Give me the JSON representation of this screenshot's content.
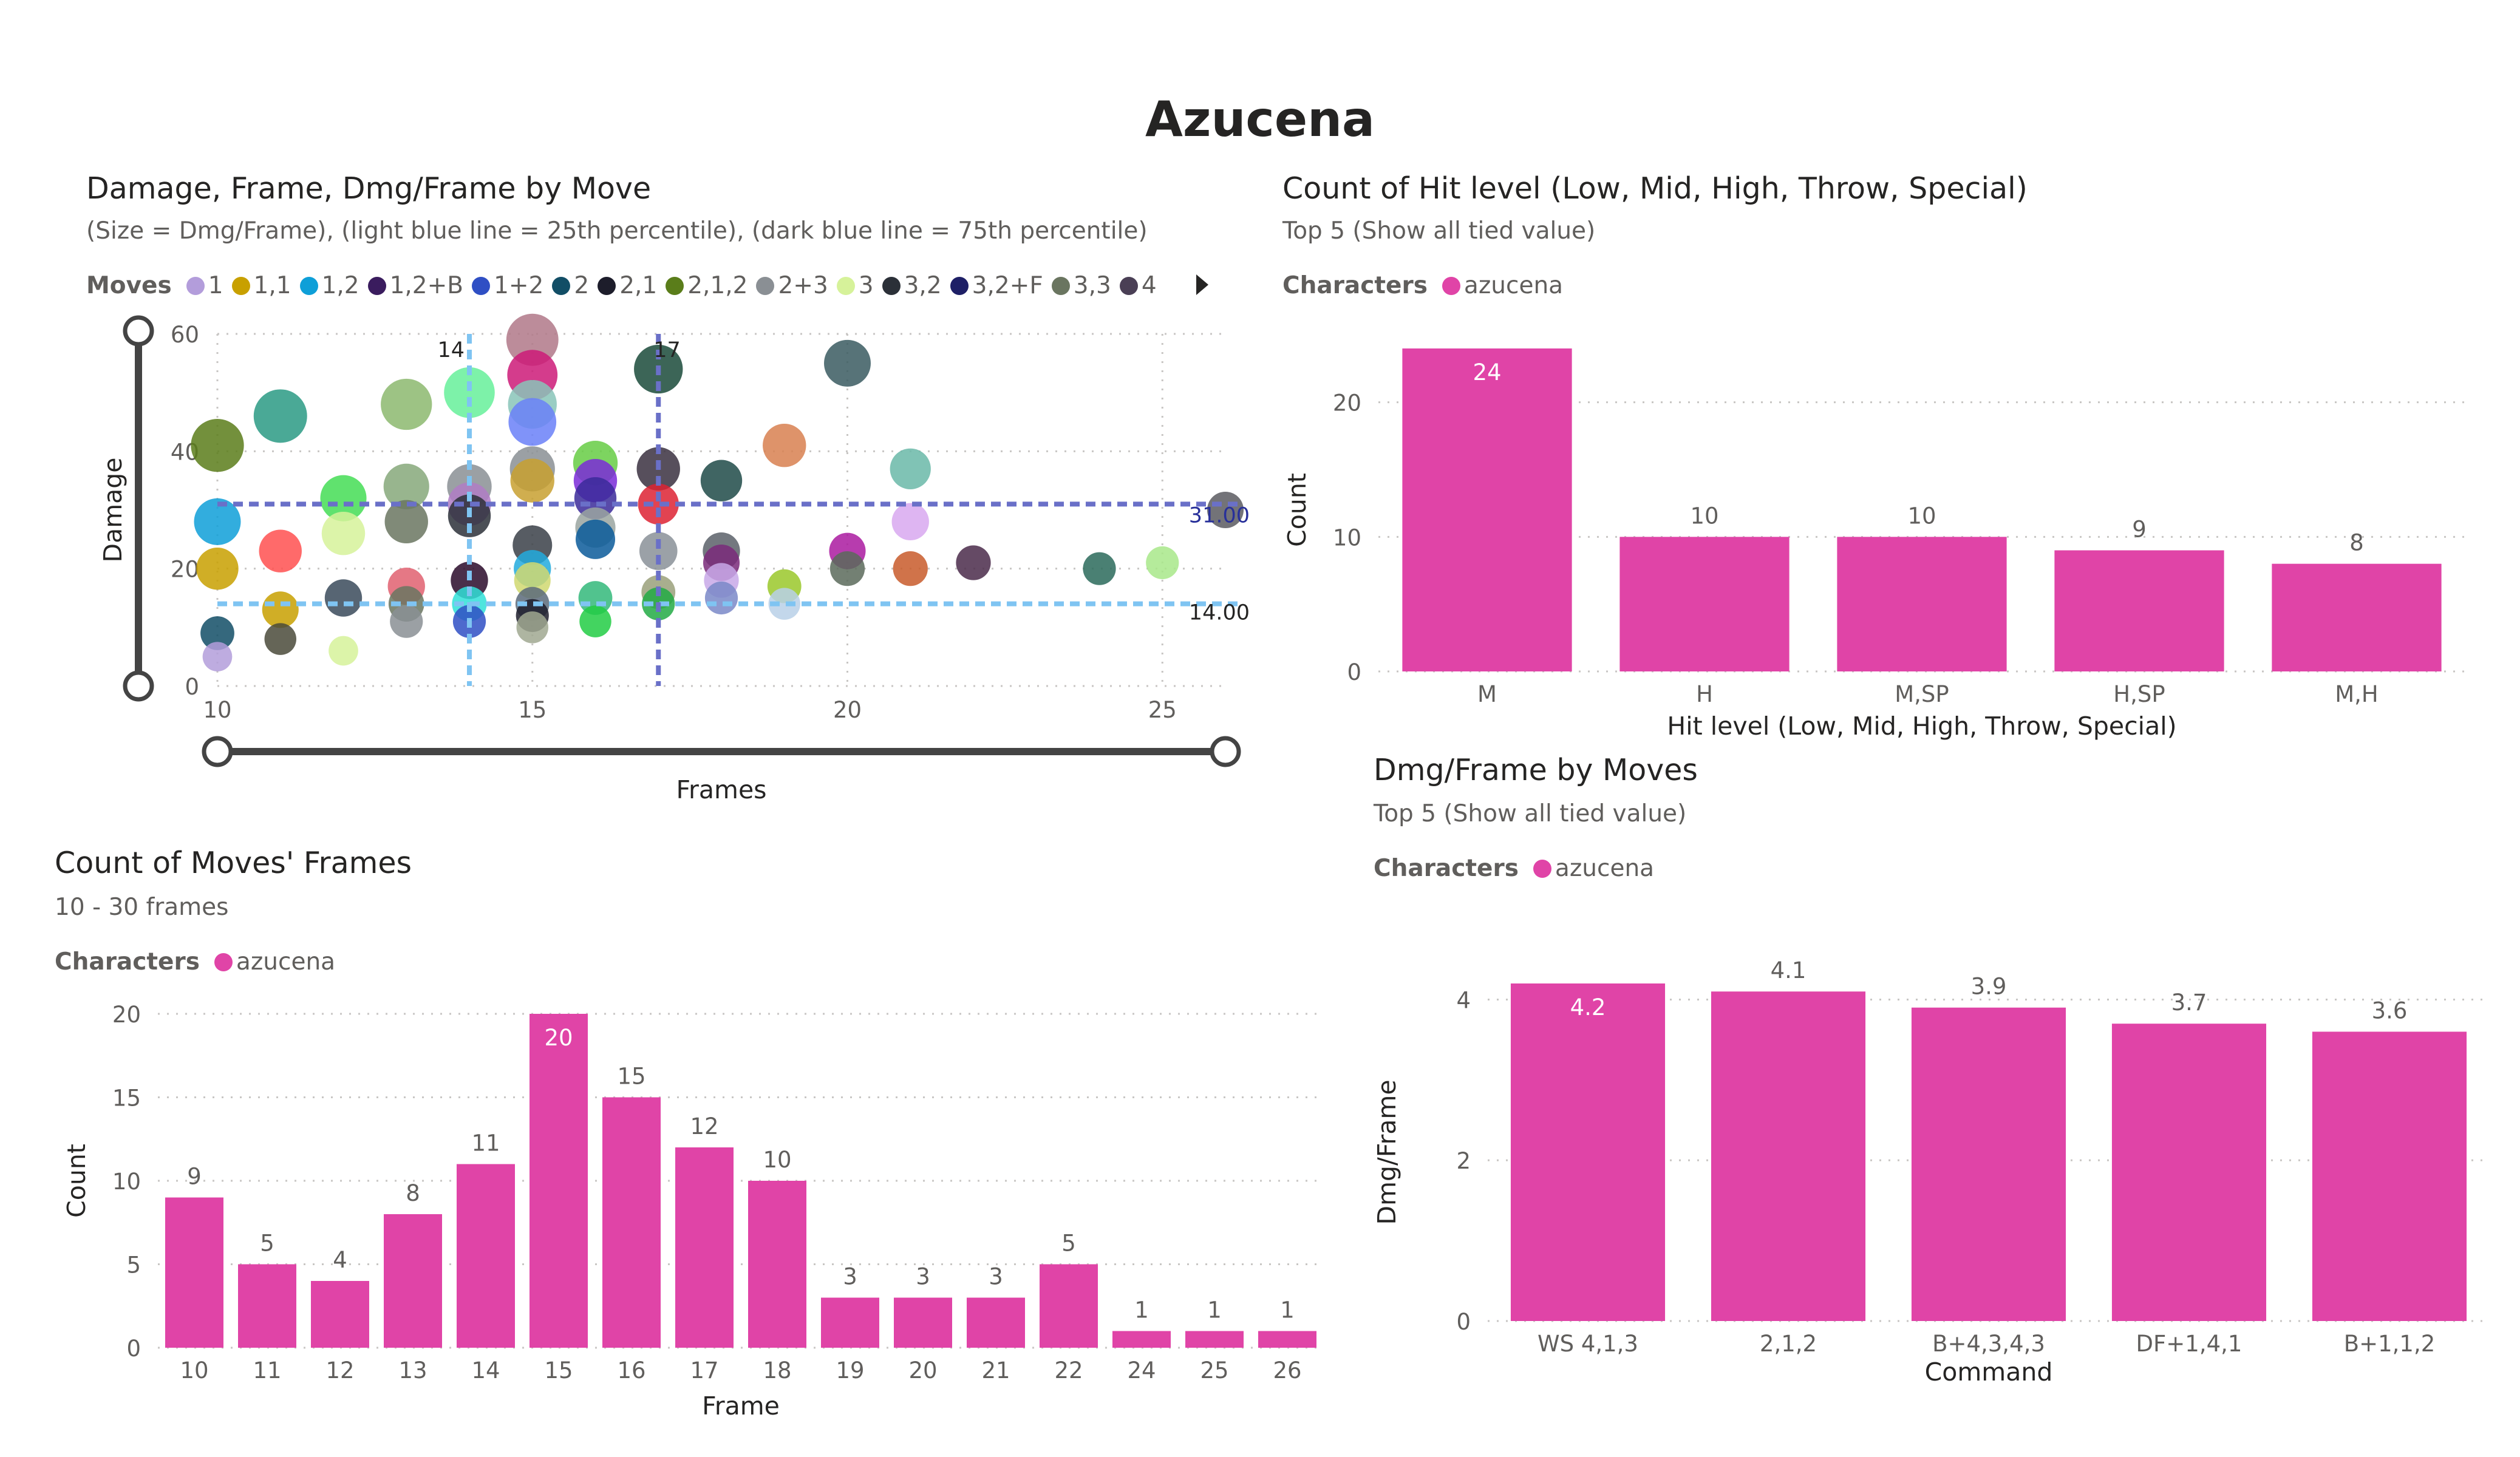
{
  "page": {
    "title": "Azucena"
  },
  "scatter_card": {
    "title": "Damage, Frame, Dmg/Frame by Move",
    "subtitle": "(Size = Dmg/Frame), (light blue line = 25th percentile), (dark blue line = 75th percentile)",
    "legend_label": "Moves",
    "more_icon": "caret-right-icon"
  },
  "hit_card": {
    "title": "Count of Hit level (Low, Mid, High, Throw, Special)",
    "subtitle": "Top 5 (Show all tied value)",
    "legend_label": "Characters",
    "legend_value": "azucena"
  },
  "frames_card": {
    "title": "Count of Moves' Frames",
    "subtitle": "10 - 30 frames",
    "legend_label": "Characters",
    "legend_value": "azucena"
  },
  "dmg_card": {
    "title": "Dmg/Frame by Moves",
    "subtitle": "Top 5 (Show all tied value)",
    "legend_label": "Characters",
    "legend_value": "azucena"
  },
  "colors": {
    "bar": "#e044a7",
    "light_line": "#7fc4f2",
    "dark_line": "#6a70c8",
    "grid": "#c8c6c4",
    "axis_text": "#605e5c"
  },
  "chart_data": [
    {
      "type": "scatter",
      "title": "Damage, Frame, Dmg/Frame by Move",
      "xlabel": "Frames",
      "ylabel": "Damage",
      "xlim": [
        10,
        26
      ],
      "ylim": [
        0,
        60
      ],
      "xticks": [
        10,
        15,
        20,
        25
      ],
      "yticks": [
        0,
        20,
        40,
        60
      ],
      "grid": true,
      "legend_position": "top",
      "legend": [
        {
          "name": "1",
          "color": "#b39ddb"
        },
        {
          "name": "1,1",
          "color": "#c8a000"
        },
        {
          "name": "1,2",
          "color": "#0e9fd8"
        },
        {
          "name": "1,2+B",
          "color": "#3a1c5e"
        },
        {
          "name": "1+2",
          "color": "#2f4fc4"
        },
        {
          "name": "2",
          "color": "#124e66"
        },
        {
          "name": "2,1",
          "color": "#1d1d2b"
        },
        {
          "name": "2,1,2",
          "color": "#5a7d1a"
        },
        {
          "name": "2+3",
          "color": "#8a8f94"
        },
        {
          "name": "3",
          "color": "#d6f29a"
        },
        {
          "name": "3,2",
          "color": "#2b3038"
        },
        {
          "name": "3,2+F",
          "color": "#1e1f66"
        },
        {
          "name": "3,3",
          "color": "#6a7560"
        },
        {
          "name": "4",
          "color": "#4a3f55"
        }
      ],
      "reference_lines": [
        {
          "axis": "y",
          "value": 31.0,
          "label": "31.00",
          "kind": "dark"
        },
        {
          "axis": "y",
          "value": 14.0,
          "label": "14.00",
          "kind": "light"
        },
        {
          "axis": "x",
          "value": 14,
          "label": "14",
          "kind": "light"
        },
        {
          "axis": "x",
          "value": 17,
          "label": "17",
          "kind": "dark"
        }
      ],
      "points": [
        {
          "x": 10,
          "y": 5,
          "size": 0.5,
          "color": "#b39ddb"
        },
        {
          "x": 10,
          "y": 9,
          "size": 0.9,
          "color": "#124e66"
        },
        {
          "x": 10,
          "y": 20,
          "size": 2.0,
          "color": "#c8a000"
        },
        {
          "x": 10,
          "y": 28,
          "size": 2.8,
          "color": "#0e9fd8"
        },
        {
          "x": 10,
          "y": 41,
          "size": 4.1,
          "color": "#5a7d1a"
        },
        {
          "x": 11,
          "y": 8,
          "size": 0.7,
          "color": "#4a4a3a"
        },
        {
          "x": 11,
          "y": 13,
          "size": 1.2,
          "color": "#c8a000"
        },
        {
          "x": 11,
          "y": 23,
          "size": 2.1,
          "color": "#ff5050"
        },
        {
          "x": 11,
          "y": 46,
          "size": 4.2,
          "color": "#2a9a84"
        },
        {
          "x": 12,
          "y": 6,
          "size": 0.5,
          "color": "#d6f29a"
        },
        {
          "x": 12,
          "y": 15,
          "size": 1.3,
          "color": "#3a4a5a"
        },
        {
          "x": 12,
          "y": 26,
          "size": 2.2,
          "color": "#d6f29a"
        },
        {
          "x": 12,
          "y": 32,
          "size": 2.7,
          "color": "#44dd55"
        },
        {
          "x": 13,
          "y": 11,
          "size": 0.8,
          "color": "#8a8f94"
        },
        {
          "x": 13,
          "y": 14,
          "size": 1.1,
          "color": "#6a7560"
        },
        {
          "x": 13,
          "y": 17,
          "size": 1.3,
          "color": "#e06070"
        },
        {
          "x": 13,
          "y": 28,
          "size": 2.2,
          "color": "#6a7560"
        },
        {
          "x": 13,
          "y": 34,
          "size": 2.6,
          "color": "#86a87a"
        },
        {
          "x": 13,
          "y": 48,
          "size": 3.7,
          "color": "#8cb86e"
        },
        {
          "x": 14,
          "y": 11,
          "size": 0.8,
          "color": "#2f4fc4"
        },
        {
          "x": 14,
          "y": 14,
          "size": 1.0,
          "color": "#30e0d8"
        },
        {
          "x": 14,
          "y": 18,
          "size": 1.3,
          "color": "#2a0a2a"
        },
        {
          "x": 14,
          "y": 29,
          "size": 2.1,
          "color": "#2b3038"
        },
        {
          "x": 14,
          "y": 31,
          "size": 2.2,
          "color": "#b07cc6"
        },
        {
          "x": 14,
          "y": 34,
          "size": 2.4,
          "color": "#8a8f94"
        },
        {
          "x": 14,
          "y": 50,
          "size": 3.6,
          "color": "#66f09a"
        },
        {
          "x": 15,
          "y": 10,
          "size": 0.7,
          "color": "#a0a890"
        },
        {
          "x": 15,
          "y": 12,
          "size": 0.8,
          "color": "#1d1d2b"
        },
        {
          "x": 15,
          "y": 14,
          "size": 0.9,
          "color": "#5a6a7a"
        },
        {
          "x": 15,
          "y": 18,
          "size": 1.2,
          "color": "#d0d870"
        },
        {
          "x": 15,
          "y": 20,
          "size": 1.3,
          "color": "#22aadd"
        },
        {
          "x": 15,
          "y": 24,
          "size": 1.6,
          "color": "#3a4048"
        },
        {
          "x": 15,
          "y": 35,
          "size": 2.3,
          "color": "#c8a030"
        },
        {
          "x": 15,
          "y": 37,
          "size": 2.5,
          "color": "#8a8f94"
        },
        {
          "x": 15,
          "y": 45,
          "size": 3.0,
          "color": "#6a80f8"
        },
        {
          "x": 15,
          "y": 48,
          "size": 3.2,
          "color": "#88c4b8"
        },
        {
          "x": 15,
          "y": 53,
          "size": 3.5,
          "color": "#cc1a78"
        },
        {
          "x": 15,
          "y": 59,
          "size": 3.9,
          "color": "#b07888"
        },
        {
          "x": 16,
          "y": 11,
          "size": 0.7,
          "color": "#22cc44"
        },
        {
          "x": 16,
          "y": 15,
          "size": 0.9,
          "color": "#33b87a"
        },
        {
          "x": 16,
          "y": 25,
          "size": 1.6,
          "color": "#0a5a9a"
        },
        {
          "x": 16,
          "y": 27,
          "size": 1.7,
          "color": "#9aa4a0"
        },
        {
          "x": 16,
          "y": 32,
          "size": 2.0,
          "color": "#3b2a9a"
        },
        {
          "x": 16,
          "y": 35,
          "size": 2.2,
          "color": "#7a2ad8"
        },
        {
          "x": 16,
          "y": 38,
          "size": 2.4,
          "color": "#66cc44"
        },
        {
          "x": 17,
          "y": 14,
          "size": 0.8,
          "color": "#22aa44"
        },
        {
          "x": 17,
          "y": 16,
          "size": 0.9,
          "color": "#9aa07a"
        },
        {
          "x": 17,
          "y": 23,
          "size": 1.4,
          "color": "#8a9098"
        },
        {
          "x": 17,
          "y": 31,
          "size": 1.8,
          "color": "#dd2233"
        },
        {
          "x": 17,
          "y": 37,
          "size": 2.2,
          "color": "#3a3040"
        },
        {
          "x": 17,
          "y": 54,
          "size": 3.2,
          "color": "#1a4a3a"
        },
        {
          "x": 18,
          "y": 15,
          "size": 0.8,
          "color": "#7a88c8"
        },
        {
          "x": 18,
          "y": 18,
          "size": 1.0,
          "color": "#c8a8e8"
        },
        {
          "x": 18,
          "y": 21,
          "size": 1.2,
          "color": "#7a2a7a"
        },
        {
          "x": 18,
          "y": 23,
          "size": 1.3,
          "color": "#5a6068"
        },
        {
          "x": 18,
          "y": 35,
          "size": 1.9,
          "color": "#1e4a48"
        },
        {
          "x": 19,
          "y": 14,
          "size": 0.7,
          "color": "#b8d0e8"
        },
        {
          "x": 19,
          "y": 17,
          "size": 0.9,
          "color": "#9ac82a"
        },
        {
          "x": 19,
          "y": 41,
          "size": 2.2,
          "color": "#d88050"
        },
        {
          "x": 20,
          "y": 20,
          "size": 1.0,
          "color": "#5a6a5a"
        },
        {
          "x": 20,
          "y": 23,
          "size": 1.2,
          "color": "#aa1aa0"
        },
        {
          "x": 20,
          "y": 55,
          "size": 2.8,
          "color": "#3a5a60"
        },
        {
          "x": 21,
          "y": 20,
          "size": 1.0,
          "color": "#c85a2a"
        },
        {
          "x": 21,
          "y": 28,
          "size": 1.3,
          "color": "#d8a8f0"
        },
        {
          "x": 21,
          "y": 37,
          "size": 1.8,
          "color": "#6ab8a8"
        },
        {
          "x": 22,
          "y": 21,
          "size": 1.0,
          "color": "#4a2a4a"
        },
        {
          "x": 24,
          "y": 20,
          "size": 0.8,
          "color": "#2a6a5a"
        },
        {
          "x": 25,
          "y": 21,
          "size": 0.8,
          "color": "#a8e88a"
        },
        {
          "x": 26,
          "y": 30,
          "size": 1.2,
          "color": "#5a5a60"
        }
      ]
    },
    {
      "type": "bar",
      "title": "Count of Hit level (Low, Mid, High, Throw, Special)",
      "xlabel": "Hit level (Low, Mid, High, Throw, Special)",
      "ylabel": "Count",
      "categories": [
        "M",
        "H",
        "M,SP",
        "H,SP",
        "M,H"
      ],
      "values": [
        24,
        10,
        10,
        9,
        8
      ],
      "ylim": [
        0,
        24
      ],
      "yticks": [
        0,
        10,
        20
      ],
      "series": [
        {
          "name": "azucena",
          "values": [
            24,
            10,
            10,
            9,
            8
          ]
        }
      ]
    },
    {
      "type": "bar",
      "title": "Count of Moves' Frames",
      "xlabel": "Frame",
      "ylabel": "Count",
      "categories": [
        "10",
        "11",
        "12",
        "13",
        "14",
        "15",
        "16",
        "17",
        "18",
        "19",
        "20",
        "21",
        "22",
        "24",
        "25",
        "26"
      ],
      "values": [
        9,
        5,
        4,
        8,
        11,
        20,
        15,
        12,
        10,
        3,
        3,
        3,
        5,
        1,
        1,
        1
      ],
      "ylim": [
        0,
        20
      ],
      "yticks": [
        0,
        5,
        10,
        15,
        20
      ],
      "series": [
        {
          "name": "azucena",
          "values": [
            9,
            5,
            4,
            8,
            11,
            20,
            15,
            12,
            10,
            3,
            3,
            3,
            5,
            1,
            1,
            1
          ]
        }
      ]
    },
    {
      "type": "bar",
      "title": "Dmg/Frame by Moves",
      "xlabel": "Command",
      "ylabel": "Dmg/Frame",
      "categories": [
        "WS 4,1,3",
        "2,1,2",
        "B+4,3,4,3",
        "DF+1,4,1",
        "B+1,1,2"
      ],
      "values": [
        4.2,
        4.1,
        3.9,
        3.7,
        3.6
      ],
      "ylim": [
        0,
        4.2
      ],
      "yticks": [
        0,
        2,
        4
      ],
      "series": [
        {
          "name": "azucena",
          "values": [
            4.2,
            4.1,
            3.9,
            3.7,
            3.6
          ]
        }
      ]
    }
  ]
}
